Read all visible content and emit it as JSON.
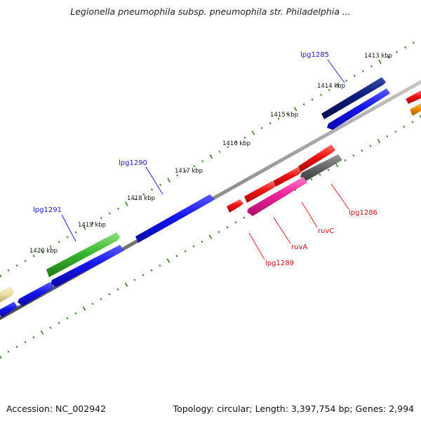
{
  "title": "Legionella pneumophila subsp. pneumophila str. Philadelphia ...",
  "footer": {
    "accession": "Accession: NC_002942",
    "stats": "Topology: circular; Length: 3,397,754 bp; Genes: 2,994"
  },
  "ticks": [
    "1413 kbp",
    "1414 kbp",
    "1415 kbp",
    "1416 kbp",
    "1417 kbp",
    "1418 kbp",
    "1419 kbp",
    "1420 kbp"
  ],
  "gene_labels": {
    "top": [
      "lpg1285",
      "lpg1290",
      "lpg1291"
    ],
    "bottom": [
      "lpg1286",
      "ruvC",
      "ruvA",
      "lpg1289"
    ]
  },
  "colors": {
    "backbone": "#8a8a8a",
    "tick_green": "#2f7f1f",
    "gene_blue": "#1515ee",
    "gene_navy": "#0a1a7a",
    "gene_green": "#3cb832",
    "gene_red": "#ee1111",
    "gene_pink": "#ee2299",
    "gene_gray": "#6a6a6a",
    "gene_orange": "#f08a00",
    "gene_khaki": "#e8e0a0",
    "label_blue": "#1a1acc",
    "label_red": "#cc1111"
  }
}
